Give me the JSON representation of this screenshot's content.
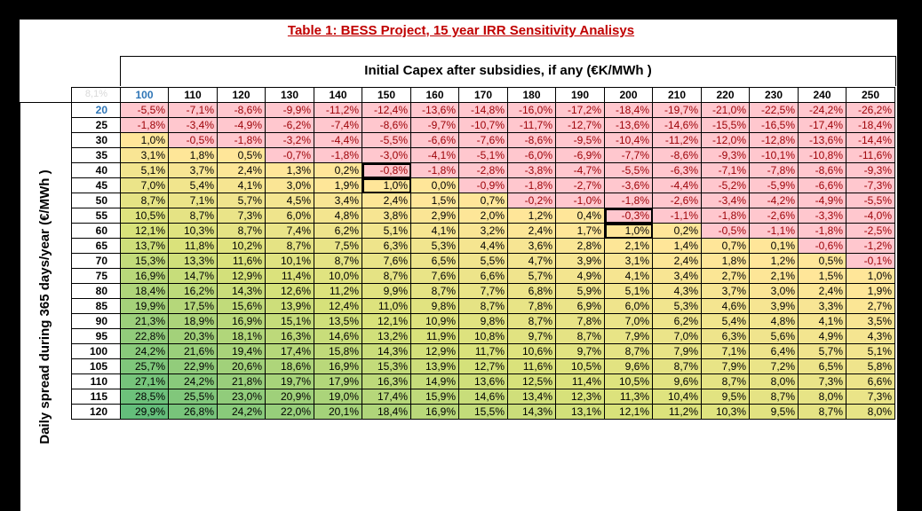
{
  "title": "Table 1: BESS Project, 15 year IRR Sensitivity Analisys",
  "col_axis_label": "Initial Capex after subsidies, if any (€K/MWh )",
  "row_axis_label": "Daily spread during 365 days/year (€/MWh )",
  "corner_label": "8,1%",
  "columns": [
    "100",
    "110",
    "120",
    "130",
    "140",
    "150",
    "160",
    "170",
    "180",
    "190",
    "200",
    "210",
    "220",
    "230",
    "240",
    "250"
  ],
  "selected_column": "100",
  "selected_row": "20",
  "rows": [
    {
      "label": "20",
      "values": [
        "-5,5%",
        "-7,1%",
        "-8,6%",
        "-9,9%",
        "-11,2%",
        "-12,4%",
        "-13,6%",
        "-14,8%",
        "-16,0%",
        "-17,2%",
        "-18,4%",
        "-19,7%",
        "-21,0%",
        "-22,5%",
        "-24,2%",
        "-26,2%"
      ]
    },
    {
      "label": "25",
      "values": [
        "-1,8%",
        "-3,4%",
        "-4,9%",
        "-6,2%",
        "-7,4%",
        "-8,6%",
        "-9,7%",
        "-10,7%",
        "-11,7%",
        "-12,7%",
        "-13,6%",
        "-14,6%",
        "-15,5%",
        "-16,5%",
        "-17,4%",
        "-18,4%"
      ]
    },
    {
      "label": "30",
      "values": [
        "1,0%",
        "-0,5%",
        "-1,8%",
        "-3,2%",
        "-4,4%",
        "-5,5%",
        "-6,6%",
        "-7,6%",
        "-8,6%",
        "-9,5%",
        "-10,4%",
        "-11,2%",
        "-12,0%",
        "-12,8%",
        "-13,6%",
        "-14,4%"
      ]
    },
    {
      "label": "35",
      "values": [
        "3,1%",
        "1,8%",
        "0,5%",
        "-0,7%",
        "-1,8%",
        "-3,0%",
        "-4,1%",
        "-5,1%",
        "-6,0%",
        "-6,9%",
        "-7,7%",
        "-8,6%",
        "-9,3%",
        "-10,1%",
        "-10,8%",
        "-11,6%"
      ]
    },
    {
      "label": "40",
      "values": [
        "5,1%",
        "3,7%",
        "2,4%",
        "1,3%",
        "0,2%",
        "-0,8%",
        "-1,8%",
        "-2,8%",
        "-3,8%",
        "-4,7%",
        "-5,5%",
        "-6,3%",
        "-7,1%",
        "-7,8%",
        "-8,6%",
        "-9,3%"
      ]
    },
    {
      "label": "45",
      "values": [
        "7,0%",
        "5,4%",
        "4,1%",
        "3,0%",
        "1,9%",
        "1,0%",
        "0,0%",
        "-0,9%",
        "-1,8%",
        "-2,7%",
        "-3,6%",
        "-4,4%",
        "-5,2%",
        "-5,9%",
        "-6,6%",
        "-7,3%"
      ]
    },
    {
      "label": "50",
      "values": [
        "8,7%",
        "7,1%",
        "5,7%",
        "4,5%",
        "3,4%",
        "2,4%",
        "1,5%",
        "0,7%",
        "-0,2%",
        "-1,0%",
        "-1,8%",
        "-2,6%",
        "-3,4%",
        "-4,2%",
        "-4,9%",
        "-5,5%"
      ]
    },
    {
      "label": "55",
      "values": [
        "10,5%",
        "8,7%",
        "7,3%",
        "6,0%",
        "4,8%",
        "3,8%",
        "2,9%",
        "2,0%",
        "1,2%",
        "0,4%",
        "-0,3%",
        "-1,1%",
        "-1,8%",
        "-2,6%",
        "-3,3%",
        "-4,0%"
      ]
    },
    {
      "label": "60",
      "values": [
        "12,1%",
        "10,3%",
        "8,7%",
        "7,4%",
        "6,2%",
        "5,1%",
        "4,1%",
        "3,2%",
        "2,4%",
        "1,7%",
        "1,0%",
        "0,2%",
        "-0,5%",
        "-1,1%",
        "-1,8%",
        "-2,5%"
      ]
    },
    {
      "label": "65",
      "values": [
        "13,7%",
        "11,8%",
        "10,2%",
        "8,7%",
        "7,5%",
        "6,3%",
        "5,3%",
        "4,4%",
        "3,6%",
        "2,8%",
        "2,1%",
        "1,4%",
        "0,7%",
        "0,1%",
        "-0,6%",
        "-1,2%"
      ]
    },
    {
      "label": "70",
      "values": [
        "15,3%",
        "13,3%",
        "11,6%",
        "10,1%",
        "8,7%",
        "7,6%",
        "6,5%",
        "5,5%",
        "4,7%",
        "3,9%",
        "3,1%",
        "2,4%",
        "1,8%",
        "1,2%",
        "0,5%",
        "-0,1%"
      ]
    },
    {
      "label": "75",
      "values": [
        "16,9%",
        "14,7%",
        "12,9%",
        "11,4%",
        "10,0%",
        "8,7%",
        "7,6%",
        "6,6%",
        "5,7%",
        "4,9%",
        "4,1%",
        "3,4%",
        "2,7%",
        "2,1%",
        "1,5%",
        "1,0%"
      ]
    },
    {
      "label": "80",
      "values": [
        "18,4%",
        "16,2%",
        "14,3%",
        "12,6%",
        "11,2%",
        "9,9%",
        "8,7%",
        "7,7%",
        "6,8%",
        "5,9%",
        "5,1%",
        "4,3%",
        "3,7%",
        "3,0%",
        "2,4%",
        "1,9%"
      ]
    },
    {
      "label": "85",
      "values": [
        "19,9%",
        "17,5%",
        "15,6%",
        "13,9%",
        "12,4%",
        "11,0%",
        "9,8%",
        "8,7%",
        "7,8%",
        "6,9%",
        "6,0%",
        "5,3%",
        "4,6%",
        "3,9%",
        "3,3%",
        "2,7%"
      ]
    },
    {
      "label": "90",
      "values": [
        "21,3%",
        "18,9%",
        "16,9%",
        "15,1%",
        "13,5%",
        "12,1%",
        "10,9%",
        "9,8%",
        "8,7%",
        "7,8%",
        "7,0%",
        "6,2%",
        "5,4%",
        "4,8%",
        "4,1%",
        "3,5%"
      ]
    },
    {
      "label": "95",
      "values": [
        "22,8%",
        "20,3%",
        "18,1%",
        "16,3%",
        "14,6%",
        "13,2%",
        "11,9%",
        "10,8%",
        "9,7%",
        "8,7%",
        "7,9%",
        "7,0%",
        "6,3%",
        "5,6%",
        "4,9%",
        "4,3%"
      ]
    },
    {
      "label": "100",
      "values": [
        "24,2%",
        "21,6%",
        "19,4%",
        "17,4%",
        "15,8%",
        "14,3%",
        "12,9%",
        "11,7%",
        "10,6%",
        "9,7%",
        "8,7%",
        "7,9%",
        "7,1%",
        "6,4%",
        "5,7%",
        "5,1%"
      ]
    },
    {
      "label": "105",
      "values": [
        "25,7%",
        "22,9%",
        "20,6%",
        "18,6%",
        "16,9%",
        "15,3%",
        "13,9%",
        "12,7%",
        "11,6%",
        "10,5%",
        "9,6%",
        "8,7%",
        "7,9%",
        "7,2%",
        "6,5%",
        "5,8%"
      ]
    },
    {
      "label": "110",
      "values": [
        "27,1%",
        "24,2%",
        "21,8%",
        "19,7%",
        "17,9%",
        "16,3%",
        "14,9%",
        "13,6%",
        "12,5%",
        "11,4%",
        "10,5%",
        "9,6%",
        "8,7%",
        "8,0%",
        "7,3%",
        "6,6%"
      ]
    },
    {
      "label": "115",
      "values": [
        "28,5%",
        "25,5%",
        "23,0%",
        "20,9%",
        "19,0%",
        "17,4%",
        "15,9%",
        "14,6%",
        "13,4%",
        "12,3%",
        "11,3%",
        "10,4%",
        "9,5%",
        "8,7%",
        "8,0%",
        "7,3%"
      ]
    },
    {
      "label": "120",
      "values": [
        "29,9%",
        "26,8%",
        "24,2%",
        "22,0%",
        "20,1%",
        "18,4%",
        "16,9%",
        "15,5%",
        "14,3%",
        "13,1%",
        "12,1%",
        "11,2%",
        "10,3%",
        "9,5%",
        "8,7%",
        "8,0%"
      ]
    }
  ],
  "highlighted_cells": [
    [
      4,
      5
    ],
    [
      5,
      5
    ],
    [
      7,
      10
    ],
    [
      8,
      10
    ]
  ],
  "colors": {
    "negative_fill": "#ffc7ce",
    "negative_text": "#9c0006",
    "low_fill": "#ffe699",
    "scale_mid": "#d9e27a",
    "scale_high": "#63be7b",
    "selected_header": "#2e75b6",
    "title": "#c00000"
  }
}
